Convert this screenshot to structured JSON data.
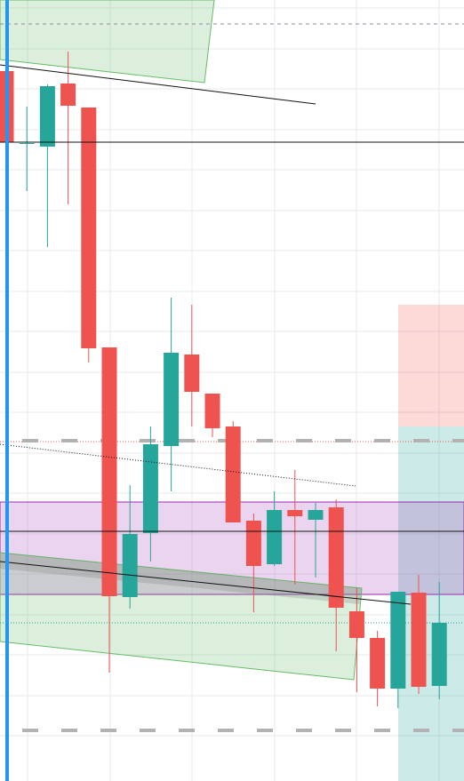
{
  "chart_data": {
    "type": "candlestick",
    "ylim": [
      0,
      879
    ],
    "up_color": "#26a69a",
    "down_color": "#ef5350",
    "open": [
      799,
      717,
      714,
      785,
      758,
      488,
      207,
      279,
      377,
      480,
      436,
      399,
      293,
      244,
      305,
      294,
      308,
      191,
      161,
      104,
      212,
      107
    ],
    "high": [
      799,
      759,
      784,
      821,
      758,
      488,
      333,
      399,
      544,
      536,
      436,
      405,
      301,
      326,
      350,
      313,
      317,
      217,
      169,
      213,
      232,
      224
    ],
    "low": [
      719,
      664,
      601,
      649,
      471,
      122,
      194,
      247,
      326,
      399,
      387,
      291,
      190,
      242,
      221,
      229,
      146,
      100,
      84,
      82,
      98,
      92
    ],
    "close": [
      719,
      718,
      782,
      760,
      487,
      208,
      278,
      379,
      482,
      438,
      397,
      291,
      242,
      305,
      298,
      305,
      195,
      161,
      104,
      213,
      106,
      178
    ]
  }
}
